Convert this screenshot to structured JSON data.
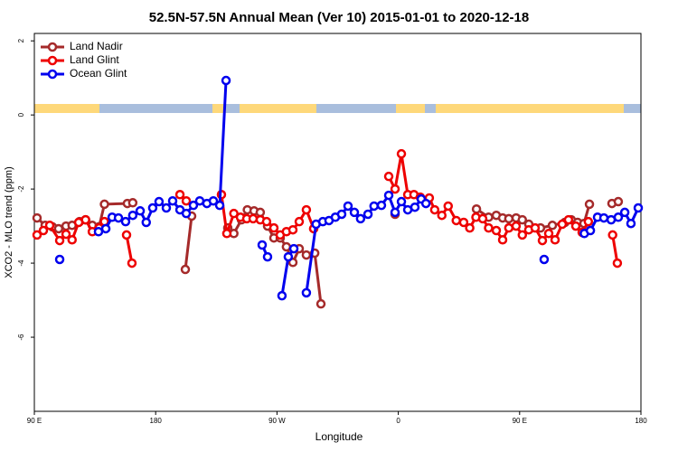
{
  "chart_data": {
    "type": "line",
    "title": "52.5N-57.5N Annual Mean (Ver 10)   2015-01-01 to 2020-12-18",
    "xlabel": "Longitude",
    "ylabel": "XCO2 - MLO trend (ppm)",
    "xlim": [
      90,
      540
    ],
    "xticks": [
      {
        "value": 90,
        "label": "90 E"
      },
      {
        "value": 180,
        "label": "180"
      },
      {
        "value": 270,
        "label": "90 W"
      },
      {
        "value": 360,
        "label": "0"
      },
      {
        "value": 450,
        "label": "90 E"
      },
      {
        "value": 540,
        "label": "180"
      }
    ],
    "ylim": [
      -8,
      2.2
    ],
    "yticks": [
      -6,
      -4,
      -2,
      0,
      2
    ],
    "legend": "upper left",
    "series": [
      {
        "name": "Land Nadir",
        "color": "#a52a2a",
        "x": [
          92,
          98,
          103.4,
          108,
          113.5,
          118,
          123.5,
          128,
          133,
          138,
          142,
          159,
          163,
          null,
          202,
          206.7,
          null,
          233.5,
          238,
          243.6,
          248,
          253,
          257.6,
          263,
          267.7,
          272.4,
          277,
          281.8,
          286.5,
          291.8,
          298,
          302.6,
          null,
          357.6,
          null,
          418,
          427,
          432.7,
          437.4,
          442,
          447.4,
          452,
          456.8,
          465.5,
          474.3,
          483.6,
          488.3,
          493,
          497.7,
          501.8,
          null,
          518.5,
          523.2
        ],
        "values": [
          -2.78,
          -2.98,
          -3.02,
          -3.07,
          -3.0,
          -2.98,
          -2.88,
          -2.83,
          -2.98,
          -3.02,
          -2.41,
          -2.39,
          -2.37,
          null,
          -4.17,
          -2.73,
          null,
          -3.05,
          -3.2,
          -2.83,
          -2.56,
          -2.59,
          -2.63,
          -3.0,
          -3.32,
          -3.32,
          -3.56,
          -3.98,
          -3.61,
          -3.78,
          -3.73,
          -5.1,
          null,
          -2.68,
          null,
          -2.54,
          -2.76,
          -2.71,
          -2.78,
          -2.8,
          -2.78,
          -2.83,
          -2.95,
          -3.05,
          -2.98,
          -2.9,
          -2.83,
          -2.9,
          -2.93,
          -2.41,
          null,
          -2.39,
          -2.34
        ]
      },
      {
        "name": "Land Glint",
        "color": "#ee0000",
        "x": [
          92,
          96.7,
          101.4,
          108.8,
          113.5,
          118,
          122.9,
          128,
          133,
          138,
          142,
          null,
          158.4,
          162.4,
          null,
          198,
          202.7,
          null,
          228.8,
          232.8,
          238,
          242.9,
          247.6,
          252.3,
          257.6,
          262.3,
          267.7,
          272.4,
          277,
          281.8,
          286.5,
          291.8,
          297.2,
          null,
          352.9,
          357.6,
          362.3,
          367,
          371.6,
          376.3,
          383,
          387,
          392.3,
          397,
          403,
          408.5,
          413,
          417.6,
          422.6,
          427,
          432.7,
          437.4,
          442,
          447.4,
          452,
          456.8,
          461.5,
          466.9,
          471.6,
          476.3,
          481.6,
          486.3,
          491.7,
          496.4,
          501,
          null,
          519,
          522.5
        ],
        "values": [
          -3.24,
          -3.12,
          -2.98,
          -3.39,
          -3.22,
          -3.37,
          -2.9,
          -2.83,
          -3.15,
          -3.05,
          -2.88,
          null,
          -3.24,
          -4.0,
          null,
          -2.15,
          -2.32,
          null,
          -2.15,
          -3.2,
          -2.66,
          -2.76,
          -2.8,
          -2.8,
          -2.83,
          -2.88,
          -3.05,
          -3.24,
          -3.15,
          -3.1,
          -2.88,
          -2.56,
          -3.07,
          null,
          -1.66,
          -2.0,
          -1.05,
          -2.15,
          -2.15,
          -2.22,
          -2.24,
          -2.56,
          -2.71,
          -2.46,
          -2.85,
          -2.9,
          -3.05,
          -2.76,
          -2.8,
          -3.05,
          -3.12,
          -3.37,
          -3.05,
          -3.0,
          -3.24,
          -3.1,
          -3.05,
          -3.39,
          -3.2,
          -3.37,
          -2.95,
          -2.83,
          -3.0,
          -3.17,
          -2.88,
          null,
          -3.24,
          -4.0
        ]
      },
      {
        "name": "Ocean Glint",
        "color": "#0000ee",
        "x": [
          108.8,
          null,
          137.6,
          143,
          147.7,
          152.4,
          157.7,
          163,
          168.5,
          173,
          177.8,
          182.5,
          187.9,
          192.6,
          198,
          202.7,
          208,
          212.7,
          218,
          222.8,
          227.5,
          232.2,
          null,
          259,
          263,
          null,
          273.7,
          278.4,
          282.5,
          null,
          291.8,
          299,
          304,
          308.6,
          313.3,
          318,
          322.7,
          327.4,
          332,
          337.5,
          342,
          347.5,
          352.9,
          357.6,
          362.3,
          367,
          372.3,
          377,
          380.5,
          null,
          468.2,
          null,
          498,
          502.5,
          507.8,
          512.5,
          517.9,
          523.2,
          528,
          532.6,
          538
        ],
        "values": [
          -3.9,
          null,
          -3.15,
          -3.07,
          -2.76,
          -2.78,
          -2.88,
          -2.71,
          -2.59,
          -2.9,
          -2.51,
          -2.34,
          -2.51,
          -2.32,
          -2.56,
          -2.66,
          -2.44,
          -2.32,
          -2.39,
          -2.32,
          -2.44,
          0.93,
          null,
          -3.51,
          -3.83,
          null,
          -4.88,
          -3.83,
          -3.61,
          null,
          -4.8,
          -2.95,
          -2.88,
          -2.85,
          -2.76,
          -2.68,
          -2.46,
          -2.63,
          -2.8,
          -2.68,
          -2.46,
          -2.44,
          -2.17,
          -2.63,
          -2.34,
          -2.56,
          -2.49,
          -2.27,
          -2.39,
          null,
          -3.9,
          null,
          -3.2,
          -3.12,
          -2.76,
          -2.78,
          -2.83,
          -2.76,
          -2.63,
          -2.93,
          -2.51
        ]
      }
    ]
  }
}
